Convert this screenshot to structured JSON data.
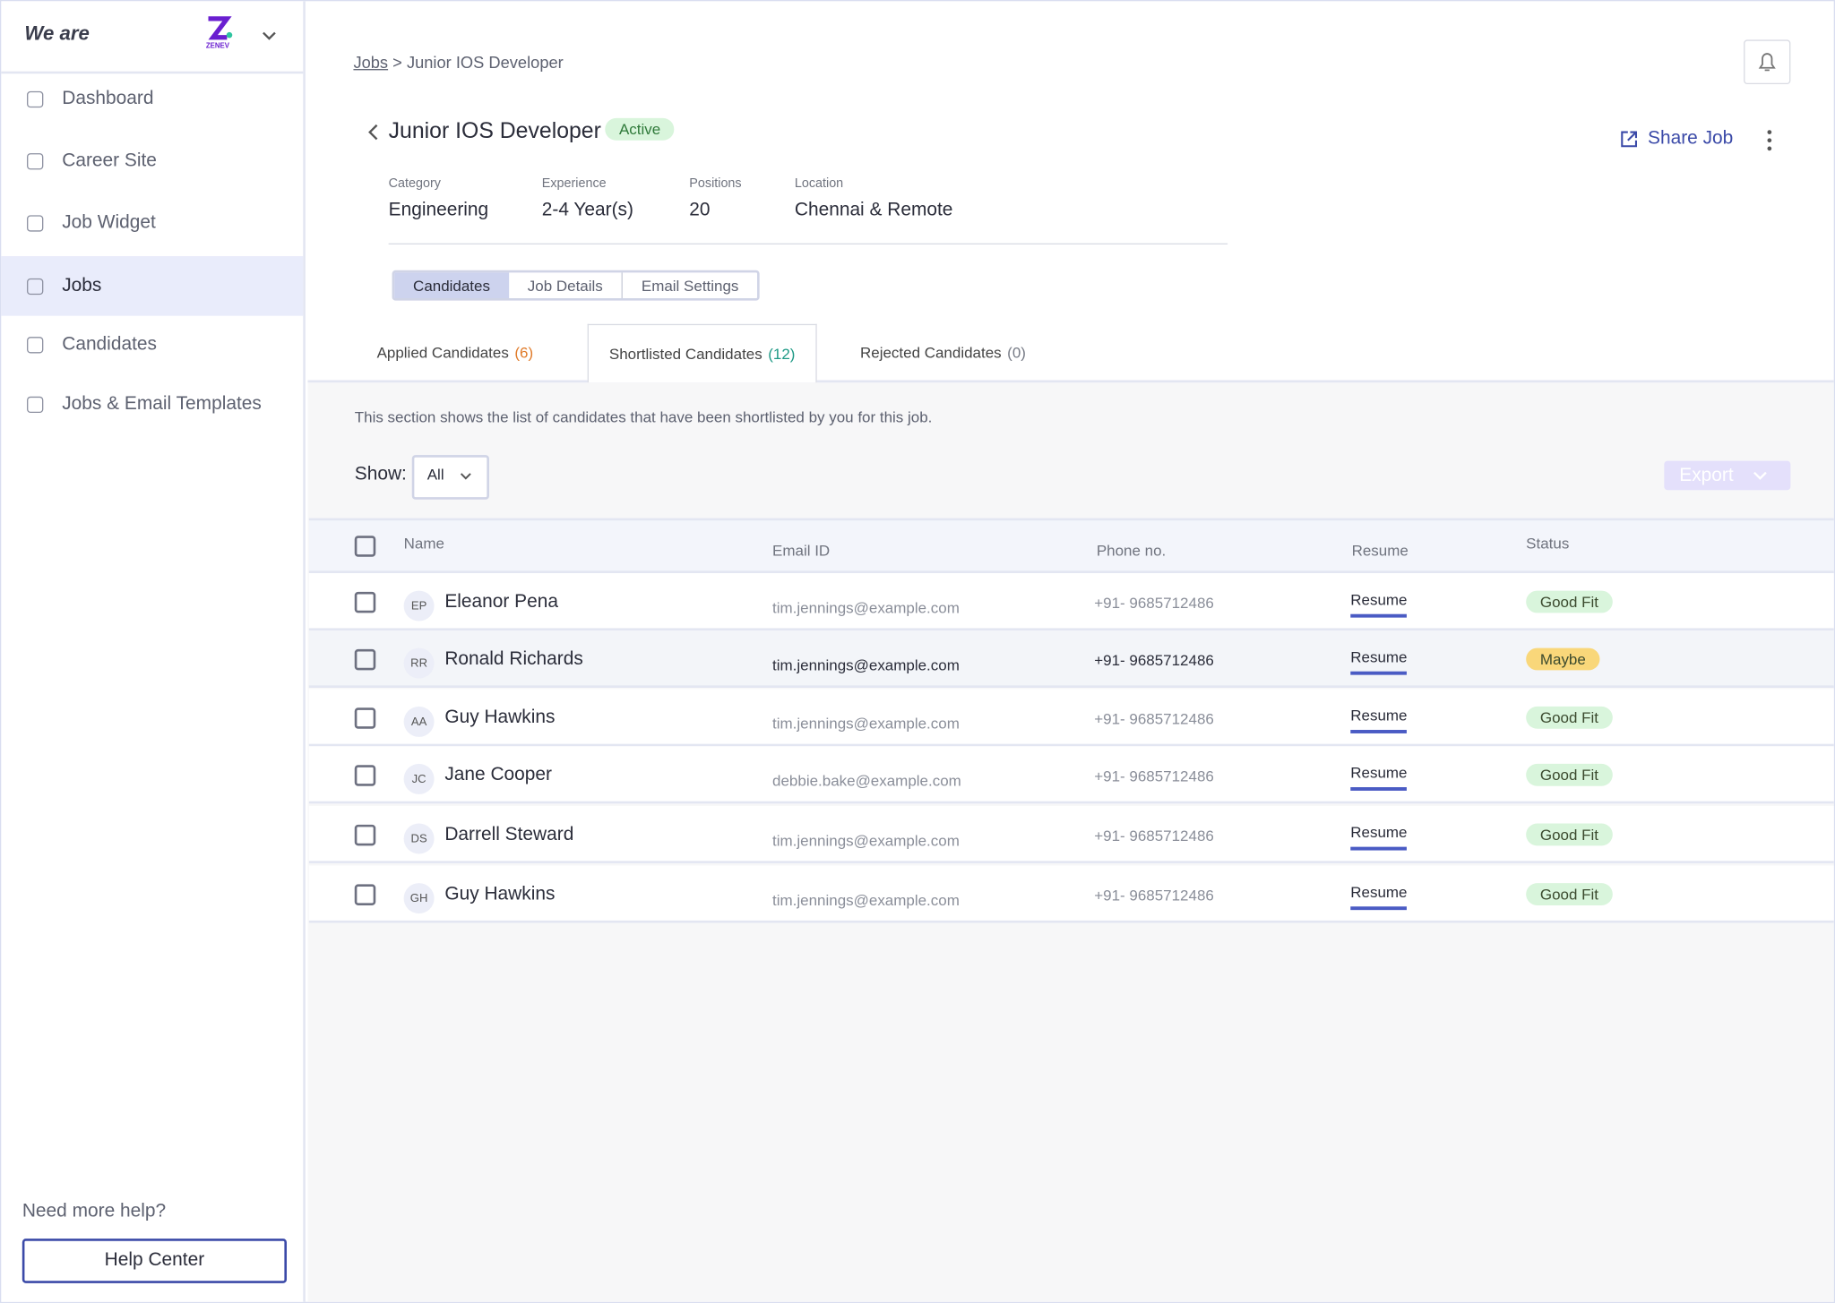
{
  "sidebar": {
    "brand": "We are",
    "logo": "ZENEV",
    "nav": [
      {
        "label": "Dashboard"
      },
      {
        "label": "Career Site"
      },
      {
        "label": "Job Widget"
      },
      {
        "label": "Jobs",
        "active": true
      },
      {
        "label": "Candidates"
      },
      {
        "label": "Jobs & Email Templates"
      }
    ],
    "help_text": "Need more help?",
    "help_button": "Help Center"
  },
  "header": {
    "breadcrumb": [
      "Jobs",
      ">",
      "Junior IOS Developer"
    ],
    "title": "Junior IOS Developer",
    "status": "Active",
    "share": "Share Job",
    "meta": [
      {
        "label": "Category",
        "value": "Engineering"
      },
      {
        "label": "Experience",
        "value": "2-4 Year(s)"
      },
      {
        "label": "Positions",
        "value": "20"
      },
      {
        "label": "Location",
        "value": "Chennai & Remote"
      }
    ],
    "view_tabs": [
      {
        "label": "Candidates",
        "active": true
      },
      {
        "label": "Job Details"
      },
      {
        "label": "Email Settings"
      }
    ]
  },
  "content": {
    "tabs": [
      {
        "label": "Applied Candidates",
        "count": "(6)",
        "color": "#e07b2a"
      },
      {
        "label": "Shortlisted Candidates",
        "count": "(12)",
        "color": "#1f9a86",
        "active": true
      },
      {
        "label": "Rejected Candidates",
        "count": "(0)",
        "color": "#777b86"
      }
    ],
    "description": "This section shows the list of candidates that have been shortlisted by you for this job.",
    "show_label": "Show:",
    "show_value": "All",
    "export": "Export"
  },
  "table": {
    "headers": [
      "Name",
      "Email ID",
      "Phone no.",
      "Resume",
      "Status"
    ],
    "rows": [
      {
        "initials": "EP",
        "name": "Eleanor Pena",
        "email": "tim.jennings@example.com",
        "phone": "+91- 9685712486",
        "resume": "Resume",
        "status": "Good Fit",
        "color": "#d9f5dc"
      },
      {
        "initials": "RR",
        "name": "Ronald Richards",
        "email": "tim.jennings@example.com",
        "phone": "+91- 9685712486",
        "resume": "Resume",
        "status": "Maybe",
        "color": "#f9d77a"
      },
      {
        "initials": "AA",
        "name": "Guy Hawkins",
        "email": "tim.jennings@example.com",
        "phone": "+91- 9685712486",
        "resume": "Resume",
        "status": "Good Fit",
        "color": "#d9f5dc"
      },
      {
        "initials": "JC",
        "name": "Jane Cooper",
        "email": "debbie.bake@example.com",
        "phone": "+91- 9685712486",
        "resume": "Resume",
        "status": "Good Fit",
        "color": "#d9f5dc"
      },
      {
        "initials": "DS",
        "name": "Darrell Steward",
        "email": "tim.jennings@example.com",
        "phone": "+91- 9685712486",
        "resume": "Resume",
        "status": "Good Fit",
        "color": "#d9f5dc"
      },
      {
        "initials": "GH",
        "name": "Guy Hawkins",
        "email": "tim.jennings@example.com",
        "phone": "+91- 9685712486",
        "resume": "Resume",
        "status": "Good Fit",
        "color": "#d9f5dc"
      }
    ]
  }
}
